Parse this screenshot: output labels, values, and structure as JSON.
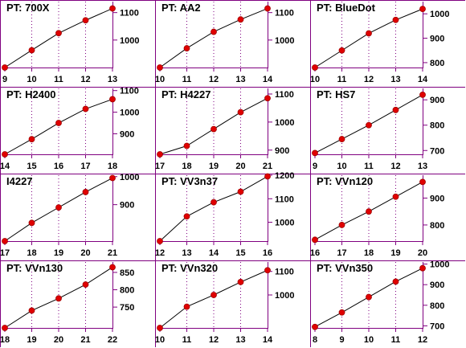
{
  "colors": {
    "frame": "#800080",
    "line": "#000000",
    "point": "#e00000",
    "point_edge": "#a00000",
    "vgrid": "#800080",
    "background": "#ffffff"
  },
  "chart_data": [
    {
      "type": "line",
      "title": "PT: 700X",
      "x": [
        9,
        10,
        11,
        12,
        13
      ],
      "y": [
        900,
        963,
        1025,
        1072,
        1115
      ],
      "xlim": [
        9,
        13
      ],
      "ylim": [
        900,
        1140
      ],
      "yticks": [
        1000,
        1100
      ]
    },
    {
      "type": "line",
      "title": "PT: AA2",
      "x": [
        10,
        11,
        12,
        13,
        14
      ],
      "y": [
        900,
        970,
        1030,
        1075,
        1115
      ],
      "xlim": [
        10,
        14
      ],
      "ylim": [
        900,
        1140
      ],
      "yticks": [
        1000,
        1100
      ]
    },
    {
      "type": "line",
      "title": "PT: BlueDot",
      "x": [
        10,
        11,
        12,
        13,
        14
      ],
      "y": [
        780,
        850,
        920,
        975,
        1020
      ],
      "xlim": [
        10,
        14
      ],
      "ylim": [
        780,
        1050
      ],
      "yticks": [
        800,
        900,
        1000
      ]
    },
    {
      "type": "line",
      "title": "PT: H2400",
      "x": [
        14,
        15,
        16,
        17,
        18
      ],
      "y": [
        805,
        875,
        950,
        1015,
        1060
      ],
      "xlim": [
        14,
        18
      ],
      "ylim": [
        805,
        1110
      ],
      "yticks": [
        900,
        1000,
        1100
      ]
    },
    {
      "type": "line",
      "title": "PT: H4227",
      "x": [
        17,
        18,
        19,
        20,
        21
      ],
      "y": [
        885,
        915,
        975,
        1035,
        1085
      ],
      "xlim": [
        17,
        21
      ],
      "ylim": [
        885,
        1120
      ],
      "yticks": [
        900,
        1000,
        1100
      ]
    },
    {
      "type": "line",
      "title": "PT: HS7",
      "x": [
        9,
        10,
        11,
        12,
        13
      ],
      "y": [
        690,
        745,
        800,
        860,
        920
      ],
      "xlim": [
        9,
        13
      ],
      "ylim": [
        685,
        945
      ],
      "yticks": [
        700,
        800,
        900
      ]
    },
    {
      "type": "line",
      "title": "I4227",
      "x": [
        17,
        18,
        19,
        20,
        21
      ],
      "y": [
        770,
        835,
        890,
        945,
        995
      ],
      "xlim": [
        17,
        21
      ],
      "ylim": [
        770,
        1005
      ],
      "yticks": [
        900,
        1000
      ]
    },
    {
      "type": "line",
      "title": "PT: VV3n37",
      "x": [
        12,
        13,
        14,
        15,
        16
      ],
      "y": [
        920,
        1025,
        1085,
        1130,
        1195
      ],
      "xlim": [
        12,
        16
      ],
      "ylim": [
        920,
        1200
      ],
      "yticks": [
        1000,
        1100,
        1200
      ]
    },
    {
      "type": "line",
      "title": "PT: VVn120",
      "x": [
        16,
        17,
        18,
        19,
        20
      ],
      "y": [
        745,
        800,
        850,
        905,
        960
      ],
      "xlim": [
        16,
        20
      ],
      "ylim": [
        740,
        985
      ],
      "yticks": [
        800,
        900
      ]
    },
    {
      "type": "line",
      "title": "PT: VVn130",
      "x": [
        18,
        19,
        20,
        21,
        22
      ],
      "y": [
        690,
        740,
        775,
        815,
        865
      ],
      "xlim": [
        18,
        22
      ],
      "ylim": [
        690,
        880
      ],
      "yticks": [
        750,
        800,
        850
      ]
    },
    {
      "type": "line",
      "title": "PT: VVn320",
      "x": [
        10,
        11,
        12,
        13,
        14
      ],
      "y": [
        860,
        950,
        1000,
        1055,
        1105
      ],
      "xlim": [
        10,
        14
      ],
      "ylim": [
        860,
        1140
      ],
      "yticks": [
        1000,
        1100
      ]
    },
    {
      "type": "line",
      "title": "PT: VVn350",
      "x": [
        8,
        9,
        10,
        11,
        12
      ],
      "y": [
        695,
        765,
        840,
        915,
        980
      ],
      "xlim": [
        8,
        12
      ],
      "ylim": [
        690,
        1010
      ],
      "yticks": [
        700,
        800,
        900,
        1000
      ]
    }
  ]
}
